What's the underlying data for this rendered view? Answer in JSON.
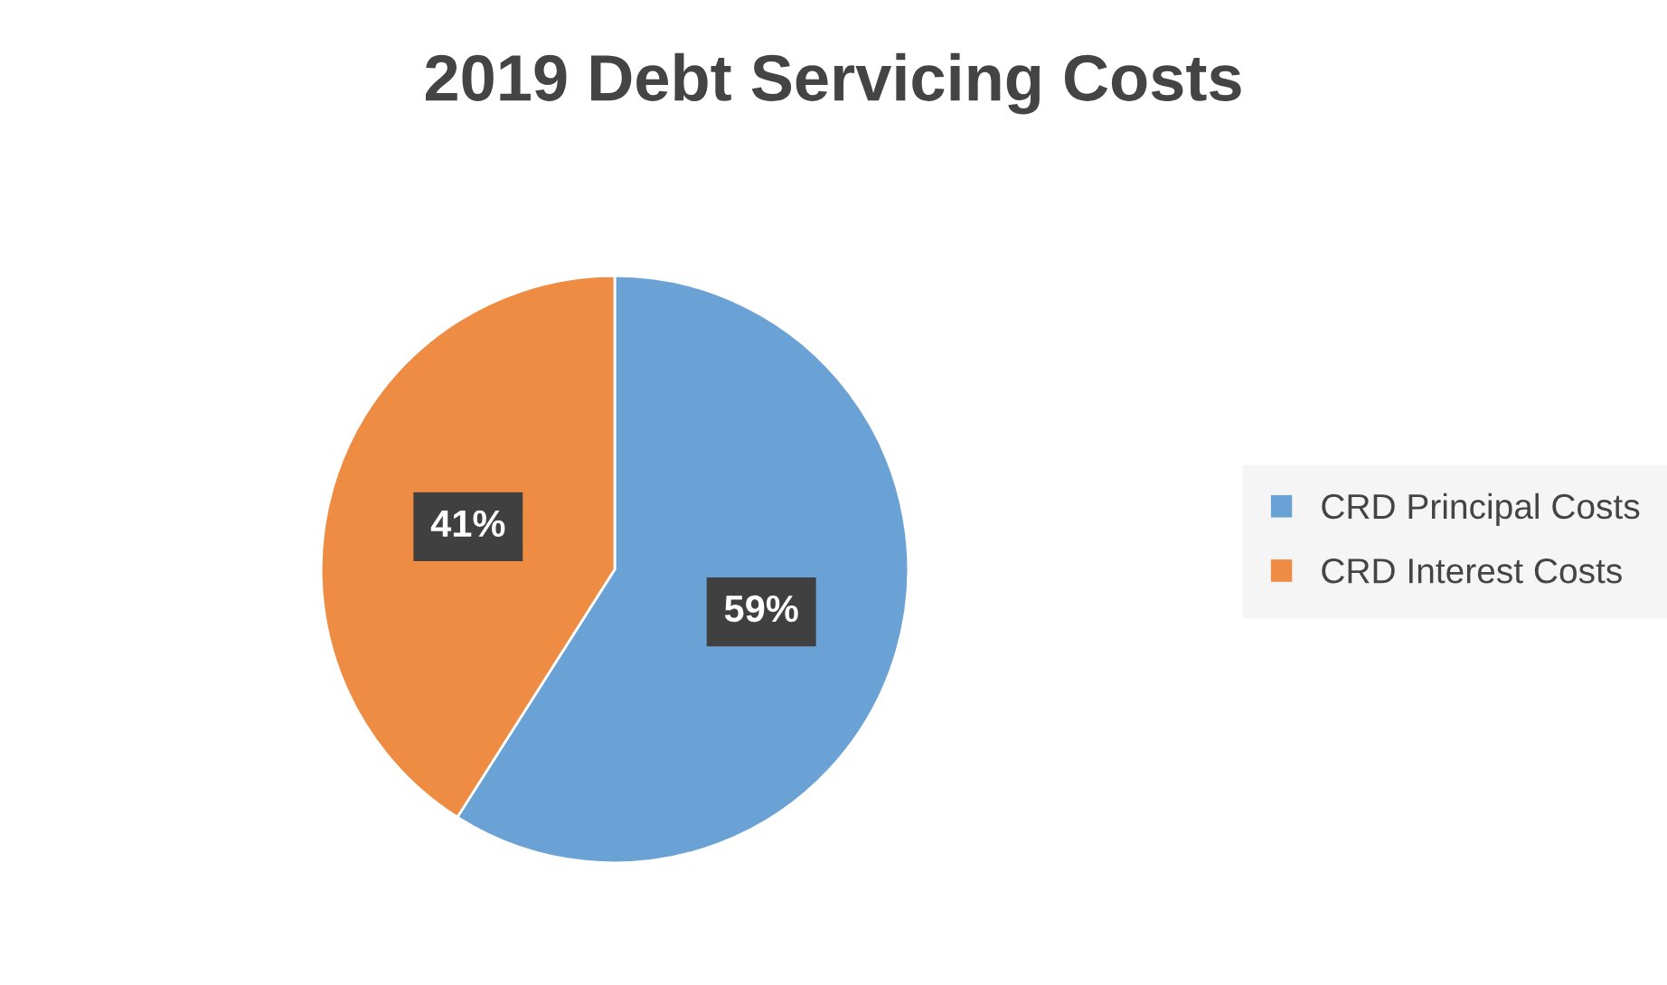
{
  "chart_data": {
    "type": "pie",
    "title": "2019 Debt Servicing Costs",
    "categories": [
      "CRD Principal Costs",
      "CRD Interest Costs"
    ],
    "values": [
      59,
      41
    ],
    "colors": [
      "#6ba2d6",
      "#ee8c44"
    ],
    "value_labels": [
      "59%",
      "41%"
    ],
    "legend": "right"
  }
}
